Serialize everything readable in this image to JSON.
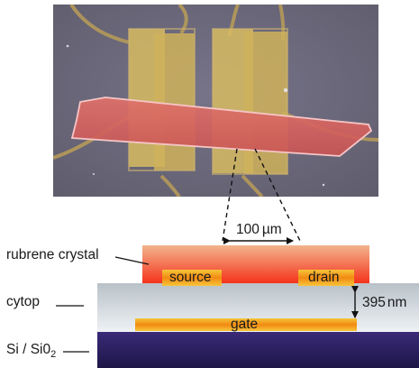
{
  "micrograph": {
    "description": "optical micrograph of rubrene crystal over electrodes"
  },
  "diagram": {
    "dimension_top": {
      "value": "100",
      "unit": "µm"
    },
    "dimension_right": {
      "value": "395",
      "unit": "nm"
    },
    "electrodes": {
      "source": "source",
      "drain": "drain",
      "gate": "gate"
    },
    "labels": {
      "crystal": "rubrene crystal",
      "dielectric": "cytop",
      "substrate_prefix": "Si / Si0",
      "substrate_subscript": "2"
    }
  },
  "colors": {
    "background_photo": "#6f6c7c",
    "crystal_top": "#f2b48e",
    "crystal_bottom": "#f4331a",
    "electrode_edge": "#f6c53a",
    "electrode_core": "#f28a12",
    "cytop_top": "#b9c1c8",
    "cytop_bottom": "#eef2f5",
    "substrate_top": "#3a2a78",
    "substrate_bottom": "#1e1648"
  }
}
